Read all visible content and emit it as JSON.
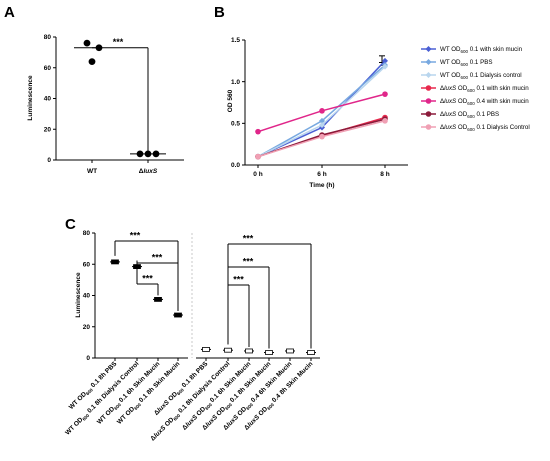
{
  "panels": {
    "a": "A",
    "b": "B",
    "c": "C"
  },
  "chart_data": [
    {
      "panel": "A",
      "type": "scatter",
      "ylabel": "Luminescence",
      "ylim": [
        0,
        80
      ],
      "yticks": [
        "0",
        "20",
        "40",
        "60",
        "80"
      ],
      "categories": [
        {
          "label": "WT",
          "italic_part": "",
          "prefix": ""
        },
        {
          "label": "",
          "italic_part": "luxS",
          "prefix": "Δ"
        }
      ],
      "groups": [
        {
          "points": [
            76,
            73,
            64
          ],
          "mean": 73
        },
        {
          "points": [
            4,
            4,
            4
          ],
          "mean": 4
        }
      ],
      "significance": "***",
      "grid": false
    },
    {
      "panel": "B",
      "type": "line",
      "xlabel": "Time (h)",
      "ylabel": "OD 560",
      "x": [
        "0 h",
        "6 h",
        "8 h"
      ],
      "ylim": [
        0.0,
        1.5
      ],
      "yticks": [
        "0.0",
        "0.5",
        "1.0",
        "1.5"
      ],
      "legend_position": "right",
      "series": [
        {
          "name": "WT OD600 0.1 with skin mucin",
          "pre": "WT OD",
          "sub": "600",
          "post": " 0.1 with skin mucin",
          "delta": false,
          "color": "#4a5fd4",
          "marker": "diamond",
          "values": [
            0.1,
            0.45,
            1.25
          ]
        },
        {
          "name": "WT OD600 0.1 PBS",
          "pre": "WT OD",
          "sub": "600",
          "post": " 0.1 PBS",
          "delta": false,
          "color": "#78a9e0",
          "marker": "diamond",
          "values": [
            0.1,
            0.53,
            1.2
          ]
        },
        {
          "name": "WT OD600 0.1 Dialysis control",
          "pre": "WT OD",
          "sub": "600",
          "post": " 0.1 Dialysis control",
          "delta": false,
          "color": "#b9d6ee",
          "marker": "diamond",
          "values": [
            0.1,
            0.48,
            1.18
          ]
        },
        {
          "name": "ΔluxS OD600 0.1 with skin mucin",
          "pre": " OD",
          "sub": "600",
          "post": " 0.1 with skin mucin",
          "delta": true,
          "color": "#e8294d",
          "marker": "circle",
          "values": [
            0.1,
            0.35,
            0.57
          ]
        },
        {
          "name": "ΔluxS OD600 0.4 with skin mucin",
          "pre": " OD",
          "sub": "600",
          "post": " 0.4 with skin mucin",
          "delta": true,
          "color": "#e0268a",
          "marker": "circle",
          "values": [
            0.4,
            0.65,
            0.85
          ]
        },
        {
          "name": "ΔluxS OD600 0.1 PBS",
          "pre": " OD",
          "sub": "600",
          "post": " 0.1 PBS",
          "delta": true,
          "color": "#8b1a3a",
          "marker": "circle",
          "values": [
            0.1,
            0.36,
            0.55
          ]
        },
        {
          "name": "ΔluxS OD600 0.1 Dialysis Control",
          "pre": " OD",
          "sub": "600",
          "post": " 0.1 Dialysis Control",
          "delta": true,
          "color": "#f0a0b4",
          "marker": "circle",
          "values": [
            0.1,
            0.34,
            0.53
          ]
        }
      ],
      "grid": false
    },
    {
      "panel": "C",
      "type": "scatter",
      "ylabel": "Luminescence",
      "ylim": [
        0,
        80
      ],
      "yticks": [
        "0",
        "20",
        "40",
        "60",
        "80"
      ],
      "categories": [
        {
          "label": "WT OD600 0.1 8h PBS",
          "pre": "WT OD",
          "sub": "600",
          "post": " 0.1 8h PBS",
          "delta": false
        },
        {
          "label": "WT OD600 0.1 8h Dialysis Control",
          "pre": "WT OD",
          "sub": "600",
          "post": " 0.1 8h Dialysis Control",
          "delta": false
        },
        {
          "label": "WT OD600 0.1 6h Skin Mucin",
          "pre": "WT OD",
          "sub": "600",
          "post": " 0.1 6h Skin Mucin",
          "delta": false
        },
        {
          "label": "WT OD600 0.1 8h Skin Mucin",
          "pre": "WT OD",
          "sub": "600",
          "post": " 0.1 8h Skin Mucin",
          "delta": false
        },
        {
          "label": "ΔluxS OD600 0.1 8h PBS",
          "pre": " OD",
          "sub": "600",
          "post": " 0.1 8h PBS",
          "delta": true
        },
        {
          "label": "ΔluxS OD600 0.1 8h Dialysis Control",
          "pre": " OD",
          "sub": "600",
          "post": " 0.1 8h Dialysis Control",
          "delta": true
        },
        {
          "label": "ΔluxS OD600 0.1 6h Skin Mucin",
          "pre": " OD",
          "sub": "600",
          "post": " 0.1 6h Skin Mucin",
          "delta": true
        },
        {
          "label": "ΔluxS OD600 0.1 8h Skin Mucin",
          "pre": " OD",
          "sub": "600",
          "post": " 0.1 8h Skin Mucin",
          "delta": true
        },
        {
          "label": "ΔluxS OD600 0.4 6h Skin Mucin",
          "pre": " OD",
          "sub": "600",
          "post": " 0.4 6h Skin Mucin",
          "delta": true
        },
        {
          "label": "ΔluxS OD600 0.4 8h Skin Mucin",
          "pre": " OD",
          "sub": "600",
          "post": " 0.4 8h Skin Mucin",
          "delta": true
        }
      ],
      "values": [
        61.5,
        58.5,
        37.5,
        27.5,
        5.5,
        5,
        4.5,
        3.5,
        4.5,
        3.5
      ],
      "comparisons": [
        {
          "from": 1,
          "to": 2,
          "label": "***"
        },
        {
          "from": 1,
          "to": 3,
          "label": "***"
        },
        {
          "from": 0,
          "to": 3,
          "label": "***"
        },
        {
          "from": 5,
          "to": 6,
          "label": "***"
        },
        {
          "from": 5,
          "to": 7,
          "label": "***"
        },
        {
          "from": 5,
          "to": 9,
          "label": "***"
        }
      ],
      "grid": false
    }
  ]
}
